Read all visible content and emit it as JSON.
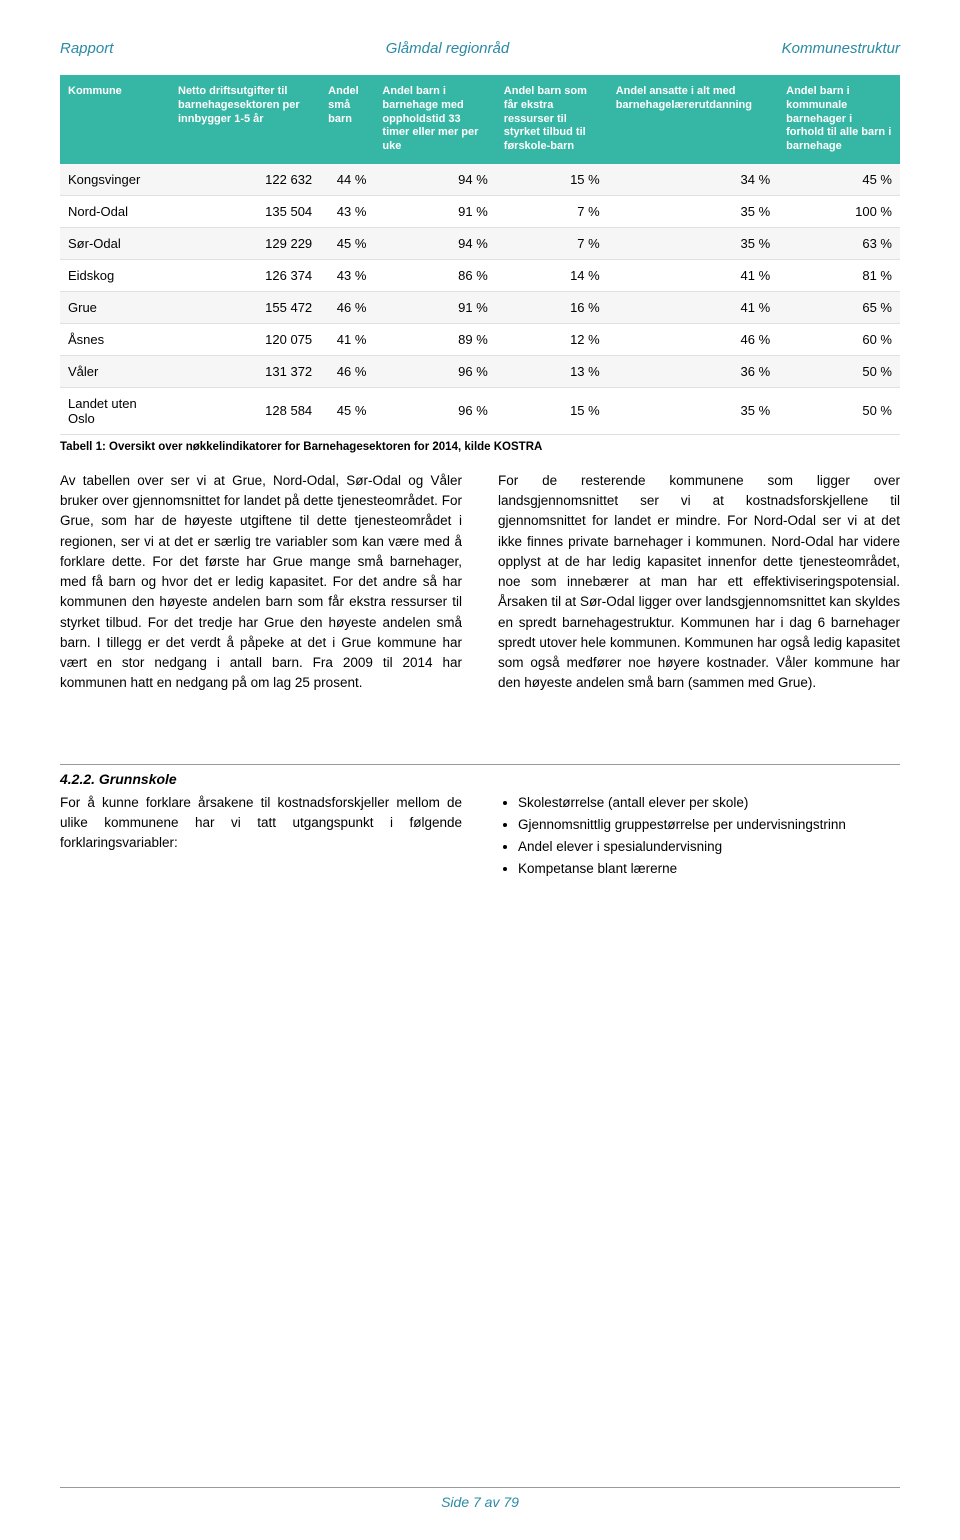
{
  "header": {
    "left": "Rapport",
    "center": "Glåmdal regionråd",
    "right": "Kommunestruktur"
  },
  "table": {
    "columns": [
      "Kommune",
      "Netto driftsutgifter til barnehagesektoren per innbygger 1-5 år",
      "Andel små barn",
      "Andel barn i barnehage med oppholdstid 33 timer eller mer per uke",
      "Andel barn som får ekstra ressurser til styrket tilbud til førskole-barn",
      "Andel ansatte i alt med barnehagelærerutdanning",
      "Andel barn i kommunale barnehager i forhold til alle barn i barnehage"
    ],
    "rows": [
      {
        "cells": [
          "Kongsvinger",
          "122 632",
          "44 %",
          "94 %",
          "15 %",
          "34 %",
          "45 %"
        ]
      },
      {
        "cells": [
          "Nord-Odal",
          "135 504",
          "43 %",
          "91 %",
          "7 %",
          "35 %",
          "100 %"
        ]
      },
      {
        "cells": [
          "Sør-Odal",
          "129 229",
          "45 %",
          "94 %",
          "7 %",
          "35 %",
          "63 %"
        ]
      },
      {
        "cells": [
          "Eidskog",
          "126 374",
          "43 %",
          "86 %",
          "14 %",
          "41 %",
          "81 %"
        ]
      },
      {
        "cells": [
          "Grue",
          "155 472",
          "46 %",
          "91 %",
          "16 %",
          "41 %",
          "65 %"
        ]
      },
      {
        "cells": [
          "Åsnes",
          "120 075",
          "41 %",
          "89 %",
          "12 %",
          "46 %",
          "60 %"
        ]
      },
      {
        "cells": [
          "Våler",
          "131 372",
          "46 %",
          "96 %",
          "13 %",
          "36 %",
          "50 %"
        ]
      },
      {
        "cells": [
          "Landet uten Oslo",
          "128 584",
          "45 %",
          "96 %",
          "15 %",
          "35 %",
          "50 %"
        ]
      }
    ],
    "caption": "Tabell 1: Oversikt over nøkkelindikatorer for Barnehagesektoren for 2014, kilde KOSTRA"
  },
  "body": {
    "para_left": "Av tabellen over ser vi at Grue, Nord-Odal, Sør-Odal og Våler bruker over gjennomsnittet for landet på dette tjenesteområdet. For Grue, som har de høyeste utgiftene til dette tjenesteområdet i regionen, ser vi at det er særlig tre variabler som kan være med å forklare dette. For det første har Grue mange små barnehager, med få barn og hvor det er ledig kapasitet. For det andre så har kommunen den høyeste andelen barn som får ekstra ressurser til styrket tilbud. For det tredje har Grue den høyeste andelen små barn. I tillegg er det verdt å påpeke at det i Grue kommune har vært en stor nedgang i antall barn. Fra 2009 til 2014 har kommunen hatt en nedgang på om lag 25 prosent.",
    "para_right": "For de resterende kommunene som ligger over landsgjennomsnittet ser vi at kostnadsforskjellene til gjennomsnittet for landet er mindre. For Nord-Odal ser vi at det ikke finnes private barnehager i kommunen. Nord-Odal har videre opplyst at de har ledig kapasitet innenfor dette tjenesteområdet, noe som innebærer at man har ett effektiviseringspotensial. Årsaken til at Sør-Odal ligger over landsgjennomsnittet kan skyldes en spredt barnehagestruktur. Kommunen har i dag 6 barnehager spredt utover hele kommunen. Kommunen har også ledig kapasitet som også medfører noe høyere kostnader. Våler kommune har den høyeste andelen små barn (sammen med Grue)."
  },
  "section": {
    "heading": "4.2.2.  Grunnskole",
    "left_text": "For å kunne forklare årsakene til kostnadsforskjeller mellom de ulike kommunene har vi tatt utgangspunkt i følgende forklaringsvariabler:",
    "bullets": [
      "Skolestørrelse (antall elever per skole)",
      "Gjennomsnittlig gruppestørrelse per undervisningstrinn",
      "Andel elever i spesialundervisning",
      "Kompetanse blant lærerne"
    ]
  },
  "footer": "Side 7 av 79"
}
